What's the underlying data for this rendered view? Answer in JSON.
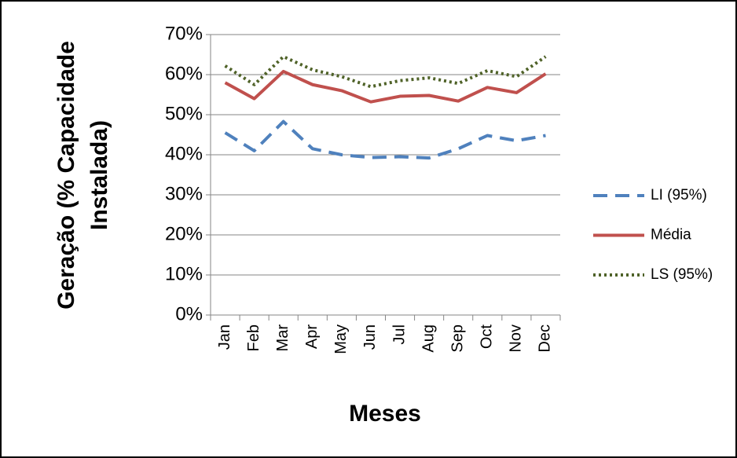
{
  "chart_data": {
    "type": "line",
    "y_label": [
      "Geração (% Capacidade",
      "Instalada)"
    ],
    "x_label": "Meses",
    "categories": [
      "Jan",
      "Feb",
      "Mar",
      "Apr",
      "May",
      "Jun",
      "Jul",
      "Aug",
      "Sep",
      "Oct",
      "Nov",
      "Dec"
    ],
    "series": [
      {
        "name": "LI (95%)",
        "color": "#4f81bd",
        "dash": "dashed",
        "values": [
          45.5,
          41,
          48.3,
          41.5,
          40,
          39.3,
          39.5,
          39.2,
          41.5,
          44.8,
          43.5,
          44.8
        ]
      },
      {
        "name": "Média",
        "color": "#c0504d",
        "dash": "solid",
        "values": [
          58,
          54,
          60.8,
          57.5,
          56,
          53.2,
          54.6,
          54.8,
          53.4,
          56.8,
          55.5,
          60.2
        ]
      },
      {
        "name": "LS (95%)",
        "color": "#4f6228",
        "dash": "dotted",
        "values": [
          62.2,
          57.5,
          64.5,
          61.2,
          59.5,
          57,
          58.5,
          59.2,
          57.8,
          61,
          59.5,
          64.5
        ]
      }
    ],
    "ylim": [
      0,
      70
    ],
    "yticks": [
      {
        "value": 0,
        "label": "0%"
      },
      {
        "value": 10,
        "label": "10%"
      },
      {
        "value": 20,
        "label": "20%"
      },
      {
        "value": 30,
        "label": "30%"
      },
      {
        "value": 40,
        "label": "40%"
      },
      {
        "value": 50,
        "label": "50%"
      },
      {
        "value": 60,
        "label": "60%"
      },
      {
        "value": 70,
        "label": "70%"
      }
    ],
    "grid": true,
    "legend": "right"
  }
}
